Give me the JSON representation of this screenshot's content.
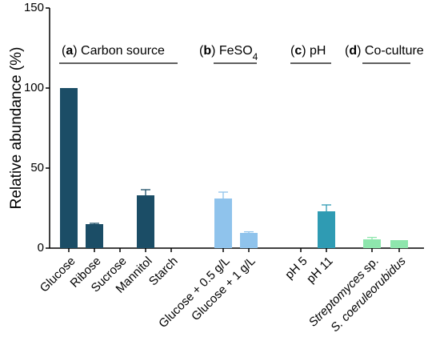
{
  "chart_data": {
    "type": "bar",
    "ylabel": "Relative abundance (%)",
    "xlabel": "",
    "ylim": [
      0,
      150
    ],
    "yticks": [
      0,
      50,
      100,
      150
    ],
    "grid": false,
    "categories": [
      {
        "label": "Glucose",
        "value": 100,
        "error": 0,
        "color": "#1b4d66",
        "group": "a",
        "italic": false
      },
      {
        "label": "Ribose",
        "value": 15,
        "error": 0.5,
        "color": "#1b4d66",
        "group": "a",
        "italic": false
      },
      {
        "label": "Sucrose",
        "value": 0,
        "error": 0,
        "color": "#1b4d66",
        "group": "a",
        "italic": false
      },
      {
        "label": "Mannitol",
        "value": 33,
        "error": 3.5,
        "color": "#1b4d66",
        "group": "a",
        "italic": false
      },
      {
        "label": "Starch",
        "value": 0,
        "error": 0,
        "color": "#1b4d66",
        "group": "a",
        "italic": false
      },
      {
        "label": "Glucose + 0.5 g/L",
        "value": 31,
        "error": 4,
        "color": "#8fc3ec",
        "group": "b",
        "italic": false
      },
      {
        "label": "Glucose + 1 g/L",
        "value": 9.5,
        "error": 0.7,
        "color": "#8fc3ec",
        "group": "b",
        "italic": false
      },
      {
        "label": "pH 5",
        "value": 0,
        "error": 0,
        "color": "#2f9bb3",
        "group": "c",
        "italic": false
      },
      {
        "label": "pH 11",
        "value": 23,
        "error": 4,
        "color": "#2f9bb3",
        "group": "c",
        "italic": false
      },
      {
        "label_italic": "Streptomyces",
        "label_rest": " sp.",
        "value": 5.5,
        "error": 1.2,
        "color": "#8ee6ad",
        "group": "d",
        "italic": true
      },
      {
        "label_italic": "S. coeruleorubidus",
        "label_rest": "",
        "value": 5,
        "error": 0,
        "color": "#8ee6ad",
        "group": "d",
        "italic": true
      }
    ],
    "groups": [
      {
        "id": "a",
        "letter": "a",
        "text": " Carbon source",
        "sub": ""
      },
      {
        "id": "b",
        "letter": "b",
        "text": " FeSO",
        "sub": "4"
      },
      {
        "id": "c",
        "letter": "c",
        "text": " pH",
        "sub": ""
      },
      {
        "id": "d",
        "letter": "d",
        "text": " Co-culture",
        "sub": ""
      }
    ]
  }
}
